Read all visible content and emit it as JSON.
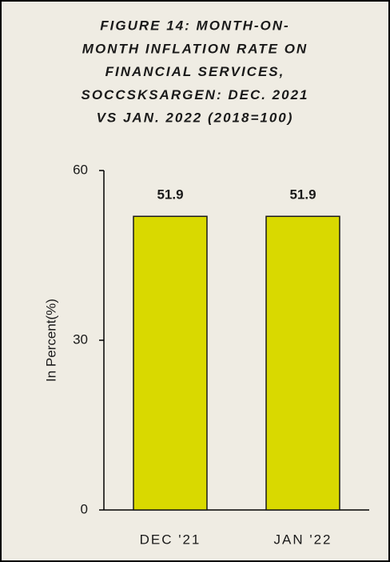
{
  "chart_data": {
    "type": "bar",
    "title": [
      "FIGURE 14: MONTH-ON-",
      "MONTH INFLATION RATE ON",
      "FINANCIAL SERVICES,",
      "SOCCSKSARGEN: DEC.  2021",
      "VS JAN. 2022 (2018=100)"
    ],
    "y_label": "In Percent(%)",
    "categories": [
      "DEC '21",
      "JAN '22"
    ],
    "values": [
      51.9,
      51.9
    ],
    "color": "#d9d900",
    "ylim": [
      0,
      60
    ],
    "yticks": [
      0,
      30,
      60
    ],
    "grid": false
  }
}
